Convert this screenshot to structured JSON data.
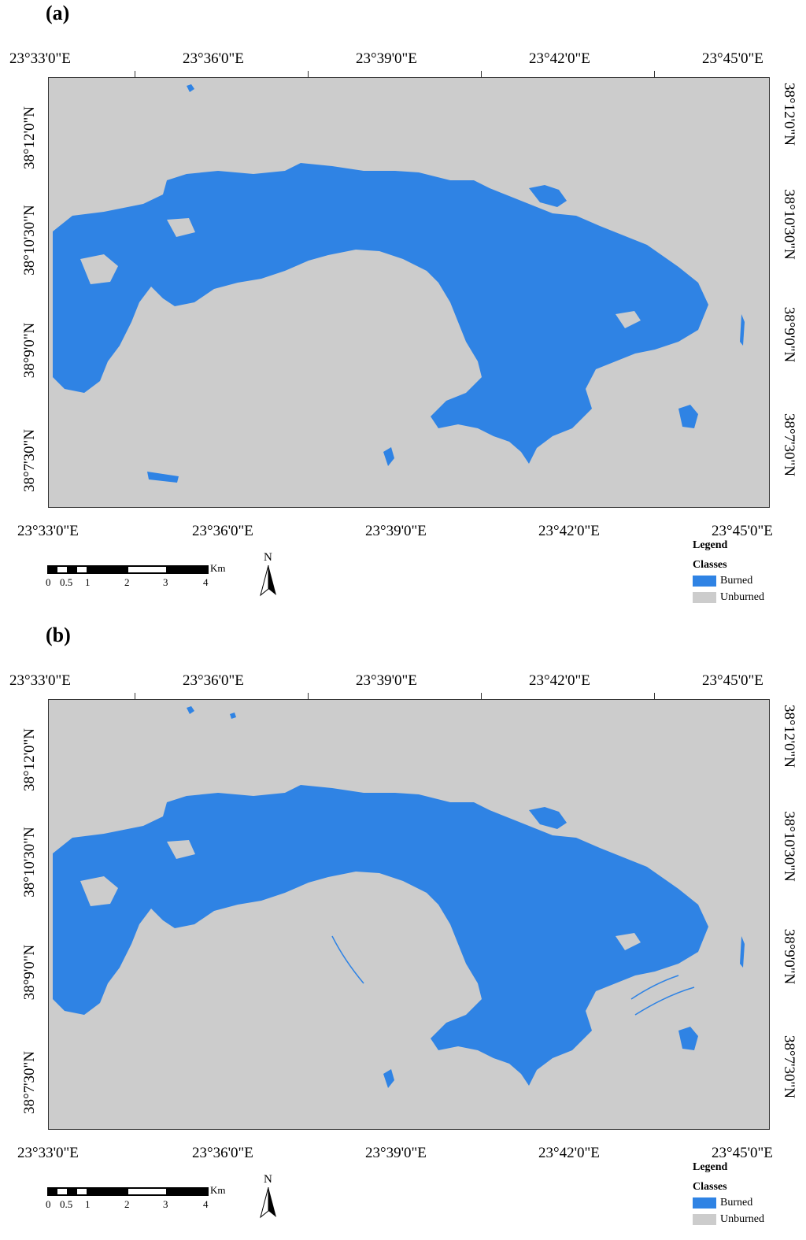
{
  "panels": [
    {
      "label": "(a)",
      "lon_ticks": [
        "23°33'0\"E",
        "23°36'0\"E",
        "23°39'0\"E",
        "23°42'0\"E",
        "23°45'0\"E"
      ],
      "lat_ticks": [
        "38°12'0\"N",
        "38°10'30\"N",
        "38°9'0\"N",
        "38°7'30\"N"
      ],
      "scale": {
        "unit": "Km",
        "labels": [
          "0",
          "0.5",
          "1",
          "2",
          "3",
          "4"
        ]
      },
      "north": "N",
      "legend": {
        "title": "Legend",
        "classes_title": "Classes",
        "items": [
          {
            "label": "Burned",
            "color": "#2f83e4"
          },
          {
            "label": "Unburned",
            "color": "#cccccc"
          }
        ]
      }
    },
    {
      "label": "(b)",
      "lon_ticks": [
        "23°33'0\"E",
        "23°36'0\"E",
        "23°39'0\"E",
        "23°42'0\"E",
        "23°45'0\"E"
      ],
      "lat_ticks": [
        "38°12'0\"N",
        "38°10'30\"N",
        "38°9'0\"N",
        "38°7'30\"N"
      ],
      "scale": {
        "unit": "Km",
        "labels": [
          "0",
          "0.5",
          "1",
          "2",
          "3",
          "4"
        ]
      },
      "north": "N",
      "legend": {
        "title": "Legend",
        "classes_title": "Classes",
        "items": [
          {
            "label": "Burned",
            "color": "#2f83e4"
          },
          {
            "label": "Unburned",
            "color": "#cccccc"
          }
        ]
      }
    }
  ],
  "colors": {
    "burned": "#2f83e4",
    "unburned": "#cccccc"
  }
}
